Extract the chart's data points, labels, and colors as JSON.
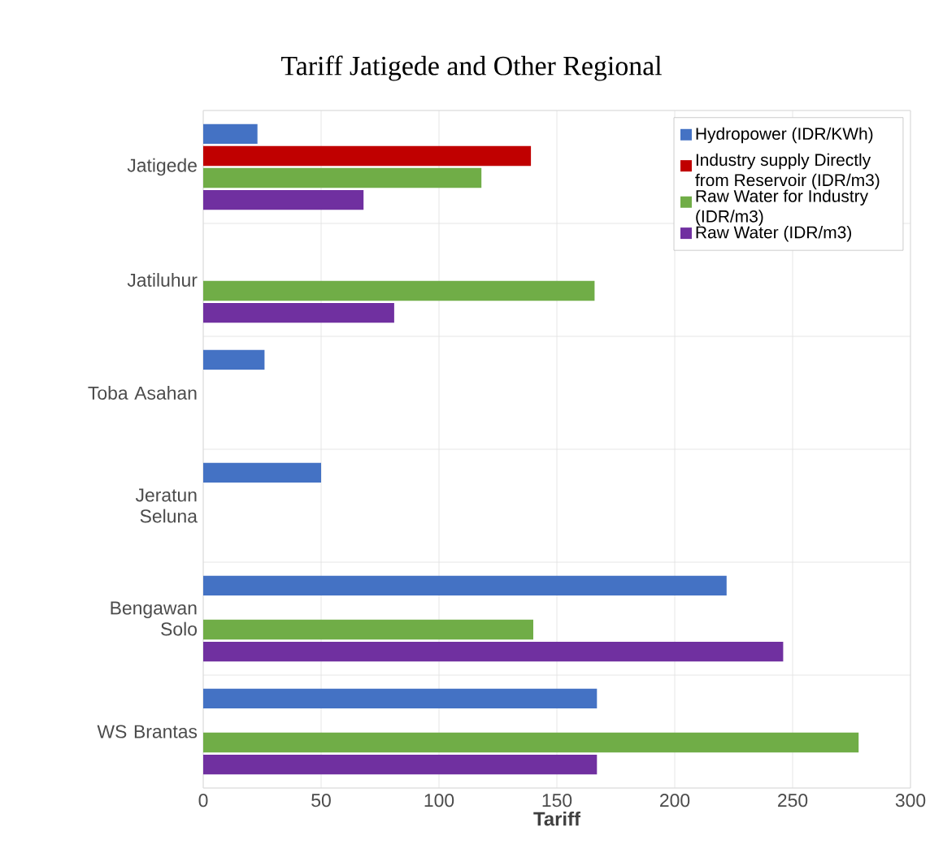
{
  "chart_data": {
    "type": "bar",
    "orientation": "horizontal",
    "title": "Tariff Jatigede and Other Regional",
    "xlabel": "Tariff",
    "categories": [
      "Jatigede",
      "Jatiluhur",
      "Toba Asahan",
      "Jeratun Seluna",
      "Bengawan Solo",
      "WS Brantas"
    ],
    "series": [
      {
        "name": "Hydropower (IDR/KWh)",
        "color": "#4472c4",
        "values": [
          23,
          null,
          26,
          50,
          222,
          167
        ]
      },
      {
        "name": "Industry supply Directly from Reservoir  (IDR/m3)",
        "color": "#c00000",
        "values": [
          139,
          null,
          null,
          null,
          null,
          null
        ]
      },
      {
        "name": "Raw Water for  Industry (IDR/m3)",
        "color": "#70ad47",
        "values": [
          118,
          166,
          null,
          null,
          140,
          278
        ]
      },
      {
        "name": "Raw Water (IDR/m3)",
        "color": "#7030a0",
        "values": [
          68,
          81,
          null,
          null,
          246,
          167
        ]
      }
    ],
    "xlim": [
      0,
      300
    ],
    "xticks": [
      0,
      50,
      100,
      150,
      200,
      250,
      300
    ],
    "grid": true,
    "legend": "top right"
  }
}
